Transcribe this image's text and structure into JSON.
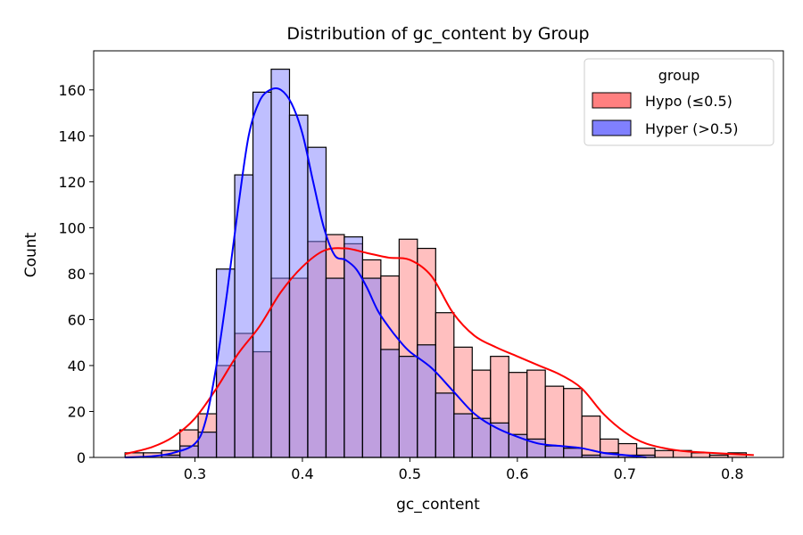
{
  "chart_data": {
    "type": "histogram",
    "title": "Distribution of gc_content by Group",
    "xlabel": "gc_content",
    "ylabel": "Count",
    "xlim": [
      0.2058,
      0.8475
    ],
    "ylim": [
      0,
      177
    ],
    "xticks": [
      0.3,
      0.4,
      0.5,
      0.6,
      0.7,
      0.8
    ],
    "xtick_labels": [
      "0.3",
      "0.4",
      "0.5",
      "0.6",
      "0.7",
      "0.8"
    ],
    "yticks": [
      0,
      20,
      40,
      60,
      80,
      100,
      120,
      140,
      160
    ],
    "ytick_labels": [
      "0",
      "20",
      "40",
      "60",
      "80",
      "100",
      "120",
      "140",
      "160"
    ],
    "bin_edges": [
      0.235,
      0.252,
      0.269,
      0.286,
      0.303,
      0.32,
      0.337,
      0.354,
      0.371,
      0.388,
      0.405,
      0.422,
      0.439,
      0.456,
      0.473,
      0.49,
      0.507,
      0.524,
      0.541,
      0.558,
      0.575,
      0.592,
      0.609,
      0.626,
      0.643,
      0.66,
      0.677,
      0.694,
      0.711,
      0.728,
      0.745,
      0.762,
      0.779,
      0.796,
      0.813,
      0.83
    ],
    "legend_title": "group",
    "legend_position": "top-right",
    "series": [
      {
        "name": "Hypo (≤0.5)",
        "color": "#ff0000",
        "fill": "#ff8080",
        "values": [
          2,
          2,
          3,
          12,
          19,
          40,
          54,
          46,
          78,
          78,
          94,
          97,
          93,
          86,
          79,
          95,
          91,
          63,
          48,
          38,
          44,
          37,
          38,
          31,
          30,
          18,
          8,
          6,
          4,
          3,
          3,
          2,
          1,
          2
        ],
        "kde_x": [
          0.235,
          0.26,
          0.28,
          0.3,
          0.32,
          0.34,
          0.36,
          0.38,
          0.4,
          0.42,
          0.44,
          0.46,
          0.48,
          0.5,
          0.52,
          0.54,
          0.56,
          0.58,
          0.6,
          0.62,
          0.64,
          0.66,
          0.68,
          0.7,
          0.72,
          0.75,
          0.78,
          0.82
        ],
        "kde_y": [
          1.5,
          4.5,
          9,
          17,
          30,
          45,
          57,
          72,
          83,
          90,
          91,
          89,
          87,
          86,
          79,
          63,
          53,
          48,
          44,
          40,
          36,
          30,
          19,
          11,
          6,
          3,
          2,
          1
        ]
      },
      {
        "name": "Hyper (>0.5)",
        "color": "#0000ff",
        "fill": "#8080ff",
        "values": [
          0,
          0,
          1,
          5,
          11,
          82,
          123,
          159,
          169,
          149,
          135,
          78,
          96,
          78,
          47,
          44,
          49,
          28,
          19,
          17,
          15,
          10,
          8,
          5,
          4,
          1,
          2,
          1,
          1,
          0,
          0,
          0,
          0,
          0
        ],
        "kde_x": [
          0.235,
          0.26,
          0.28,
          0.3,
          0.31,
          0.32,
          0.33,
          0.34,
          0.35,
          0.36,
          0.37,
          0.38,
          0.39,
          0.4,
          0.41,
          0.42,
          0.43,
          0.44,
          0.45,
          0.46,
          0.47,
          0.48,
          0.49,
          0.5,
          0.52,
          0.54,
          0.56,
          0.58,
          0.6,
          0.62,
          0.64,
          0.66,
          0.68,
          0.7,
          0.72
        ],
        "kde_y": [
          0,
          0.5,
          2,
          6,
          16,
          40,
          72,
          108,
          140,
          155,
          160,
          160,
          154,
          141,
          120,
          100,
          88,
          86,
          82,
          74,
          64,
          57,
          51,
          46,
          39,
          29,
          19,
          13,
          9,
          6,
          5,
          4,
          2,
          1,
          0
        ]
      }
    ]
  }
}
